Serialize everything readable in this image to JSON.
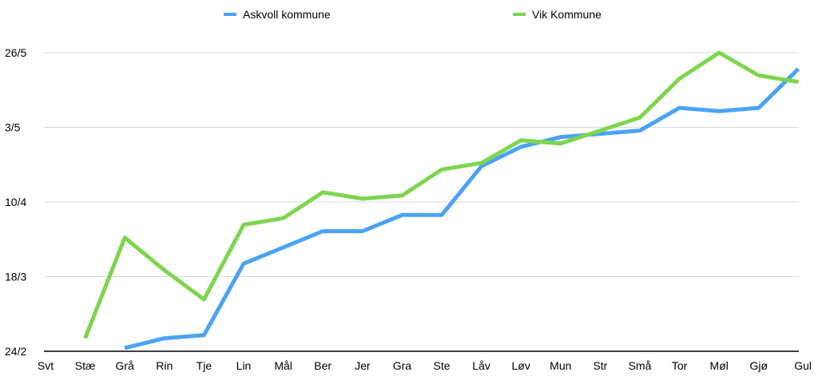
{
  "chart_data": {
    "type": "line",
    "title": "",
    "xlabel": "",
    "ylabel": "",
    "grid": true,
    "legend_position": "top",
    "categories": [
      "Svt",
      "Stæ",
      "Grå",
      "Rin",
      "Tje",
      "Lin",
      "Mål",
      "Ber",
      "Jer",
      "Gra",
      "Ste",
      "Låv",
      "Løv",
      "Mun",
      "Str",
      "Små",
      "Tor",
      "Møl",
      "Gjø",
      "Gul"
    ],
    "y_ticks": [
      "24/2",
      "18/3",
      "10/4",
      "3/5",
      "26/5"
    ],
    "y_tick_days": [
      0,
      23,
      46,
      69,
      92
    ],
    "ylim_days": [
      0,
      92
    ],
    "series": [
      {
        "name": "Askvoll kommune",
        "color": "#4aa3f5",
        "values_days": [
          null,
          null,
          1,
          4,
          5,
          27,
          32,
          37,
          37,
          42,
          42,
          57,
          63,
          66,
          67,
          68,
          75,
          74,
          75,
          87
        ]
      },
      {
        "name": "Vik Kommune",
        "color": "#7ed54e",
        "values_days": [
          null,
          4,
          35,
          25,
          16,
          39,
          41,
          49,
          47,
          48,
          56,
          58,
          65,
          64,
          68,
          72,
          84,
          92,
          85,
          83
        ]
      }
    ]
  }
}
